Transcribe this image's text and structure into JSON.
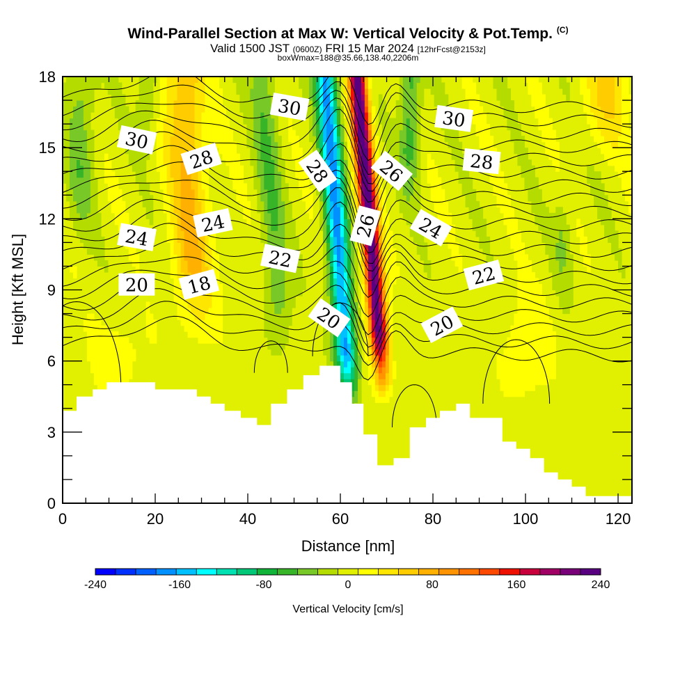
{
  "header": {
    "title": "Wind-Parallel Section at Max W: Vertical Velocity & Pot.Temp.",
    "copyright": "(C)",
    "subtitle_main": "Valid 1500 JST",
    "subtitle_utc": "(0600Z)",
    "subtitle_date": "FRI 15 Mar 2024",
    "subtitle_run": "[12hrFcst@2153z]",
    "note": "boxWmax=188@35.66,138.40,2206m"
  },
  "chart_data": {
    "type": "heatmap",
    "title": "Wind-Parallel Section at Max W: Vertical Velocity & Pot.Temp.",
    "xlabel": "Distance [nm]",
    "ylabel": "Height [Kft MSL]",
    "xlim": [
      0,
      123
    ],
    "ylim": [
      0,
      18
    ],
    "xticks": [
      "0",
      "20",
      "40",
      "60",
      "80",
      "100",
      "120"
    ],
    "yticks": [
      "0",
      "3",
      "6",
      "9",
      "12",
      "15",
      "18"
    ],
    "colorbar": {
      "label": "Vertical Velocity [cm/s]",
      "min": -240,
      "max": 240,
      "step": 20,
      "tick_labels": [
        "-240",
        "-160",
        "-80",
        "0",
        "80",
        "160",
        "240"
      ],
      "colors": [
        "#0000ff",
        "#0030ff",
        "#0060ff",
        "#0090ff",
        "#00c0ff",
        "#00ffff",
        "#00e0b0",
        "#00c878",
        "#10b438",
        "#38b428",
        "#78c828",
        "#b4dc00",
        "#e1f000",
        "#ffff00",
        "#ffe600",
        "#ffcc00",
        "#ffb000",
        "#ff9400",
        "#ff7200",
        "#ff4800",
        "#ee1000",
        "#c8003c",
        "#a00064",
        "#780078",
        "#580080"
      ]
    },
    "terrain_profile": {
      "x": [
        0,
        3,
        3,
        6.5,
        6.5,
        9.5,
        9.5,
        20,
        20,
        29,
        29,
        32,
        32,
        35,
        35,
        38.5,
        38.5,
        42,
        42,
        45,
        45,
        48.5,
        48.5,
        52,
        52,
        55.5,
        55.5,
        60,
        60,
        62.5,
        62.5,
        65,
        65,
        68,
        68,
        71.5,
        71.5,
        75,
        75,
        78.5,
        78.5,
        81.5,
        81.5,
        85,
        85,
        88,
        88,
        95,
        95,
        98,
        98,
        101,
        101,
        104,
        104,
        107,
        107,
        110,
        110,
        113,
        113,
        116,
        116,
        123
      ],
      "y": [
        3.9,
        3.9,
        4.5,
        4.5,
        4.8,
        4.8,
        5.1,
        5.1,
        4.8,
        4.8,
        4.5,
        4.5,
        4.2,
        4.2,
        3.9,
        3.9,
        3.6,
        3.6,
        3.3,
        3.3,
        4.2,
        4.2,
        4.8,
        4.8,
        5.4,
        5.4,
        5.8,
        5.8,
        5.1,
        5.1,
        4.2,
        4.2,
        2.9,
        2.9,
        1.6,
        1.6,
        1.9,
        1.9,
        3.2,
        3.2,
        3.6,
        3.6,
        3.9,
        3.9,
        4.2,
        4.2,
        3.6,
        3.6,
        2.6,
        2.6,
        2.3,
        2.3,
        1.9,
        1.9,
        1.3,
        1.3,
        1.0,
        1.0,
        0.7,
        0.7,
        0.3,
        0.3,
        0.3,
        0.3
      ]
    },
    "updraft_max_cm_s": 240,
    "downdraft_min_cm_s": -170,
    "pot_temp_labels": [
      {
        "value": "30",
        "x": 16,
        "y": 15.3
      },
      {
        "value": "28",
        "x": 30,
        "y": 14.5
      },
      {
        "value": "30",
        "x": 49,
        "y": 16.7
      },
      {
        "value": "28",
        "x": 55,
        "y": 14.0
      },
      {
        "value": "26",
        "x": 71,
        "y": 14.0
      },
      {
        "value": "30",
        "x": 84.5,
        "y": 16.2
      },
      {
        "value": "28",
        "x": 90.5,
        "y": 14.4
      },
      {
        "value": "24",
        "x": 16,
        "y": 11.2
      },
      {
        "value": "24",
        "x": 32.5,
        "y": 11.8
      },
      {
        "value": "26",
        "x": 65.5,
        "y": 11.7
      },
      {
        "value": "24",
        "x": 79.5,
        "y": 11.6
      },
      {
        "value": "22",
        "x": 47,
        "y": 10.3
      },
      {
        "value": "22",
        "x": 91,
        "y": 9.6
      },
      {
        "value": "20",
        "x": 16,
        "y": 9.2
      },
      {
        "value": "18",
        "x": 29.5,
        "y": 9.2
      },
      {
        "value": "20",
        "x": 57.5,
        "y": 7.8
      },
      {
        "value": "20",
        "x": 82,
        "y": 7.5
      }
    ]
  }
}
